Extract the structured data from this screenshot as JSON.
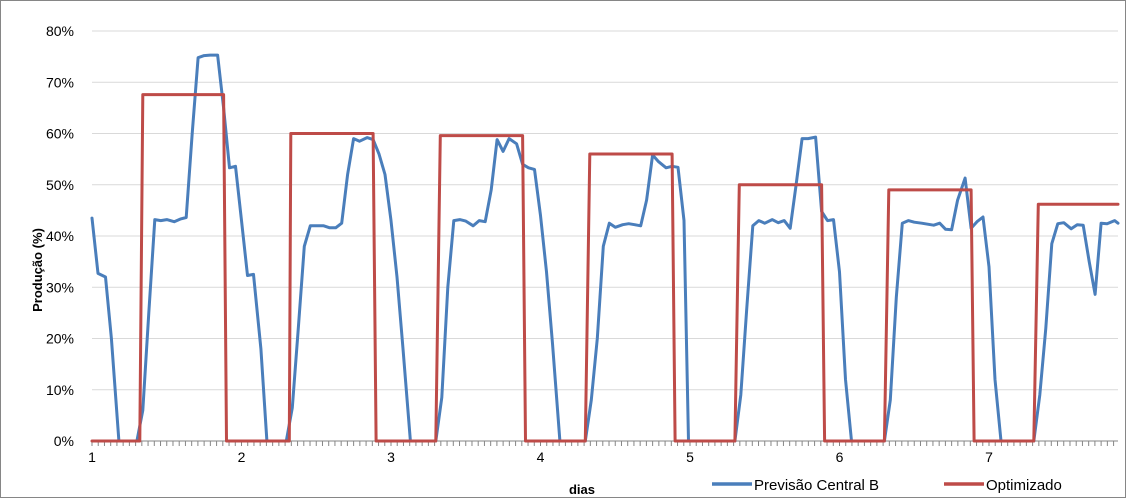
{
  "chart_data": {
    "type": "line",
    "xlabel": "dias",
    "ylabel": "Produção (%)",
    "y_ticks": [
      "0%",
      "10%",
      "20%",
      "30%",
      "40%",
      "50%",
      "60%",
      "70%",
      "80%"
    ],
    "ylim": [
      0,
      80
    ],
    "x_ticks": [
      "1",
      "2",
      "3",
      "4",
      "5",
      "6",
      "7"
    ],
    "xlim": [
      1,
      7.84
    ],
    "grid": true,
    "legend_position": "bottom",
    "colors": {
      "forecast": "#4a7ebb",
      "optimized": "#be4b48"
    },
    "series": [
      {
        "name": "Previsão Central B",
        "color": "#4a7ebb",
        "points": [
          [
            1.0,
            43.5
          ],
          [
            1.04,
            32.7
          ],
          [
            1.09,
            32.0
          ],
          [
            1.13,
            20.0
          ],
          [
            1.18,
            0
          ],
          [
            1.3,
            0
          ],
          [
            1.34,
            6.0
          ],
          [
            1.38,
            25.0
          ],
          [
            1.42,
            43.2
          ],
          [
            1.46,
            43.0
          ],
          [
            1.5,
            43.2
          ],
          [
            1.55,
            42.8
          ],
          [
            1.59,
            43.3
          ],
          [
            1.63,
            43.6
          ],
          [
            1.67,
            60.0
          ],
          [
            1.71,
            74.8
          ],
          [
            1.75,
            75.2
          ],
          [
            1.79,
            75.3
          ],
          [
            1.84,
            75.3
          ],
          [
            1.88,
            65.0
          ],
          [
            1.92,
            53.3
          ],
          [
            1.96,
            53.6
          ],
          [
            2.0,
            43.0
          ],
          [
            2.04,
            32.3
          ],
          [
            2.08,
            32.5
          ],
          [
            2.13,
            18.0
          ],
          [
            2.17,
            0
          ],
          [
            2.3,
            0
          ],
          [
            2.34,
            6.5
          ],
          [
            2.38,
            22.0
          ],
          [
            2.42,
            38.0
          ],
          [
            2.46,
            42.0
          ],
          [
            2.5,
            42.0
          ],
          [
            2.55,
            42.0
          ],
          [
            2.59,
            41.6
          ],
          [
            2.63,
            41.6
          ],
          [
            2.67,
            42.5
          ],
          [
            2.71,
            52.0
          ],
          [
            2.75,
            59.0
          ],
          [
            2.79,
            58.5
          ],
          [
            2.84,
            59.2
          ],
          [
            2.88,
            58.8
          ],
          [
            2.92,
            56.0
          ],
          [
            2.96,
            52.0
          ],
          [
            3.0,
            43.0
          ],
          [
            3.04,
            32.0
          ],
          [
            3.08,
            18.0
          ],
          [
            3.13,
            0
          ],
          [
            3.3,
            0
          ],
          [
            3.34,
            8.5
          ],
          [
            3.38,
            30.0
          ],
          [
            3.42,
            43.0
          ],
          [
            3.46,
            43.2
          ],
          [
            3.5,
            42.9
          ],
          [
            3.55,
            42.0
          ],
          [
            3.59,
            43.0
          ],
          [
            3.63,
            42.8
          ],
          [
            3.67,
            49.0
          ],
          [
            3.71,
            58.8
          ],
          [
            3.75,
            56.5
          ],
          [
            3.79,
            59.0
          ],
          [
            3.84,
            58.0
          ],
          [
            3.88,
            54.0
          ],
          [
            3.92,
            53.3
          ],
          [
            3.96,
            53.0
          ],
          [
            4.0,
            44.0
          ],
          [
            4.04,
            33.0
          ],
          [
            4.08,
            19.0
          ],
          [
            4.13,
            0
          ],
          [
            4.3,
            0
          ],
          [
            4.34,
            8.0
          ],
          [
            4.38,
            20.0
          ],
          [
            4.42,
            38.0
          ],
          [
            4.46,
            42.5
          ],
          [
            4.5,
            41.7
          ],
          [
            4.55,
            42.2
          ],
          [
            4.59,
            42.4
          ],
          [
            4.63,
            42.2
          ],
          [
            4.67,
            42.0
          ],
          [
            4.71,
            47.0
          ],
          [
            4.75,
            55.8
          ],
          [
            4.79,
            54.5
          ],
          [
            4.84,
            53.3
          ],
          [
            4.88,
            53.6
          ],
          [
            4.92,
            53.4
          ],
          [
            4.96,
            43.0
          ],
          [
            4.99,
            0
          ],
          [
            5.3,
            0
          ],
          [
            5.34,
            9.0
          ],
          [
            5.38,
            26.0
          ],
          [
            5.42,
            42.0
          ],
          [
            5.46,
            43.0
          ],
          [
            5.5,
            42.5
          ],
          [
            5.55,
            43.2
          ],
          [
            5.59,
            42.6
          ],
          [
            5.63,
            43.0
          ],
          [
            5.67,
            41.5
          ],
          [
            5.71,
            50.0
          ],
          [
            5.75,
            59.0
          ],
          [
            5.79,
            59.0
          ],
          [
            5.84,
            59.3
          ],
          [
            5.88,
            44.8
          ],
          [
            5.92,
            43.0
          ],
          [
            5.96,
            43.2
          ],
          [
            6.0,
            33.0
          ],
          [
            6.04,
            12.0
          ],
          [
            6.08,
            0
          ],
          [
            6.3,
            0
          ],
          [
            6.34,
            8.0
          ],
          [
            6.38,
            28.0
          ],
          [
            6.42,
            42.5
          ],
          [
            6.46,
            43.0
          ],
          [
            6.5,
            42.7
          ],
          [
            6.55,
            42.5
          ],
          [
            6.59,
            42.3
          ],
          [
            6.63,
            42.1
          ],
          [
            6.67,
            42.5
          ],
          [
            6.71,
            41.3
          ],
          [
            6.75,
            41.2
          ],
          [
            6.79,
            47.0
          ],
          [
            6.84,
            51.3
          ],
          [
            6.88,
            41.5
          ],
          [
            6.92,
            42.8
          ],
          [
            6.96,
            43.7
          ],
          [
            7.0,
            34.0
          ],
          [
            7.04,
            12.0
          ],
          [
            7.08,
            0
          ],
          [
            7.3,
            0
          ],
          [
            7.34,
            9.0
          ],
          [
            7.38,
            22.0
          ],
          [
            7.42,
            38.5
          ],
          [
            7.46,
            42.4
          ],
          [
            7.5,
            42.6
          ],
          [
            7.55,
            41.4
          ],
          [
            7.59,
            42.2
          ],
          [
            7.63,
            42.1
          ],
          [
            7.67,
            35.0
          ],
          [
            7.71,
            28.6
          ],
          [
            7.75,
            42.5
          ],
          [
            7.79,
            42.4
          ],
          [
            7.84,
            43.0
          ],
          [
            7.88,
            42.5
          ]
        ]
      },
      {
        "name": "Optimizado",
        "color": "#be4b48",
        "points": [
          [
            1.0,
            0
          ],
          [
            1.32,
            0
          ],
          [
            1.34,
            67.6
          ],
          [
            1.88,
            67.6
          ],
          [
            1.9,
            0
          ],
          [
            2.32,
            0
          ],
          [
            2.33,
            60.0
          ],
          [
            2.88,
            60.0
          ],
          [
            2.9,
            0
          ],
          [
            3.3,
            0
          ],
          [
            3.33,
            59.6
          ],
          [
            3.88,
            59.6
          ],
          [
            3.9,
            0
          ],
          [
            4.3,
            0
          ],
          [
            4.33,
            56.0
          ],
          [
            4.88,
            56.0
          ],
          [
            4.9,
            0
          ],
          [
            5.3,
            0
          ],
          [
            5.33,
            50.0
          ],
          [
            5.88,
            50.0
          ],
          [
            5.9,
            0
          ],
          [
            6.3,
            0
          ],
          [
            6.33,
            49.0
          ],
          [
            6.88,
            49.0
          ],
          [
            6.9,
            0
          ],
          [
            7.3,
            0
          ],
          [
            7.33,
            46.2
          ],
          [
            7.88,
            46.2
          ]
        ]
      }
    ]
  }
}
